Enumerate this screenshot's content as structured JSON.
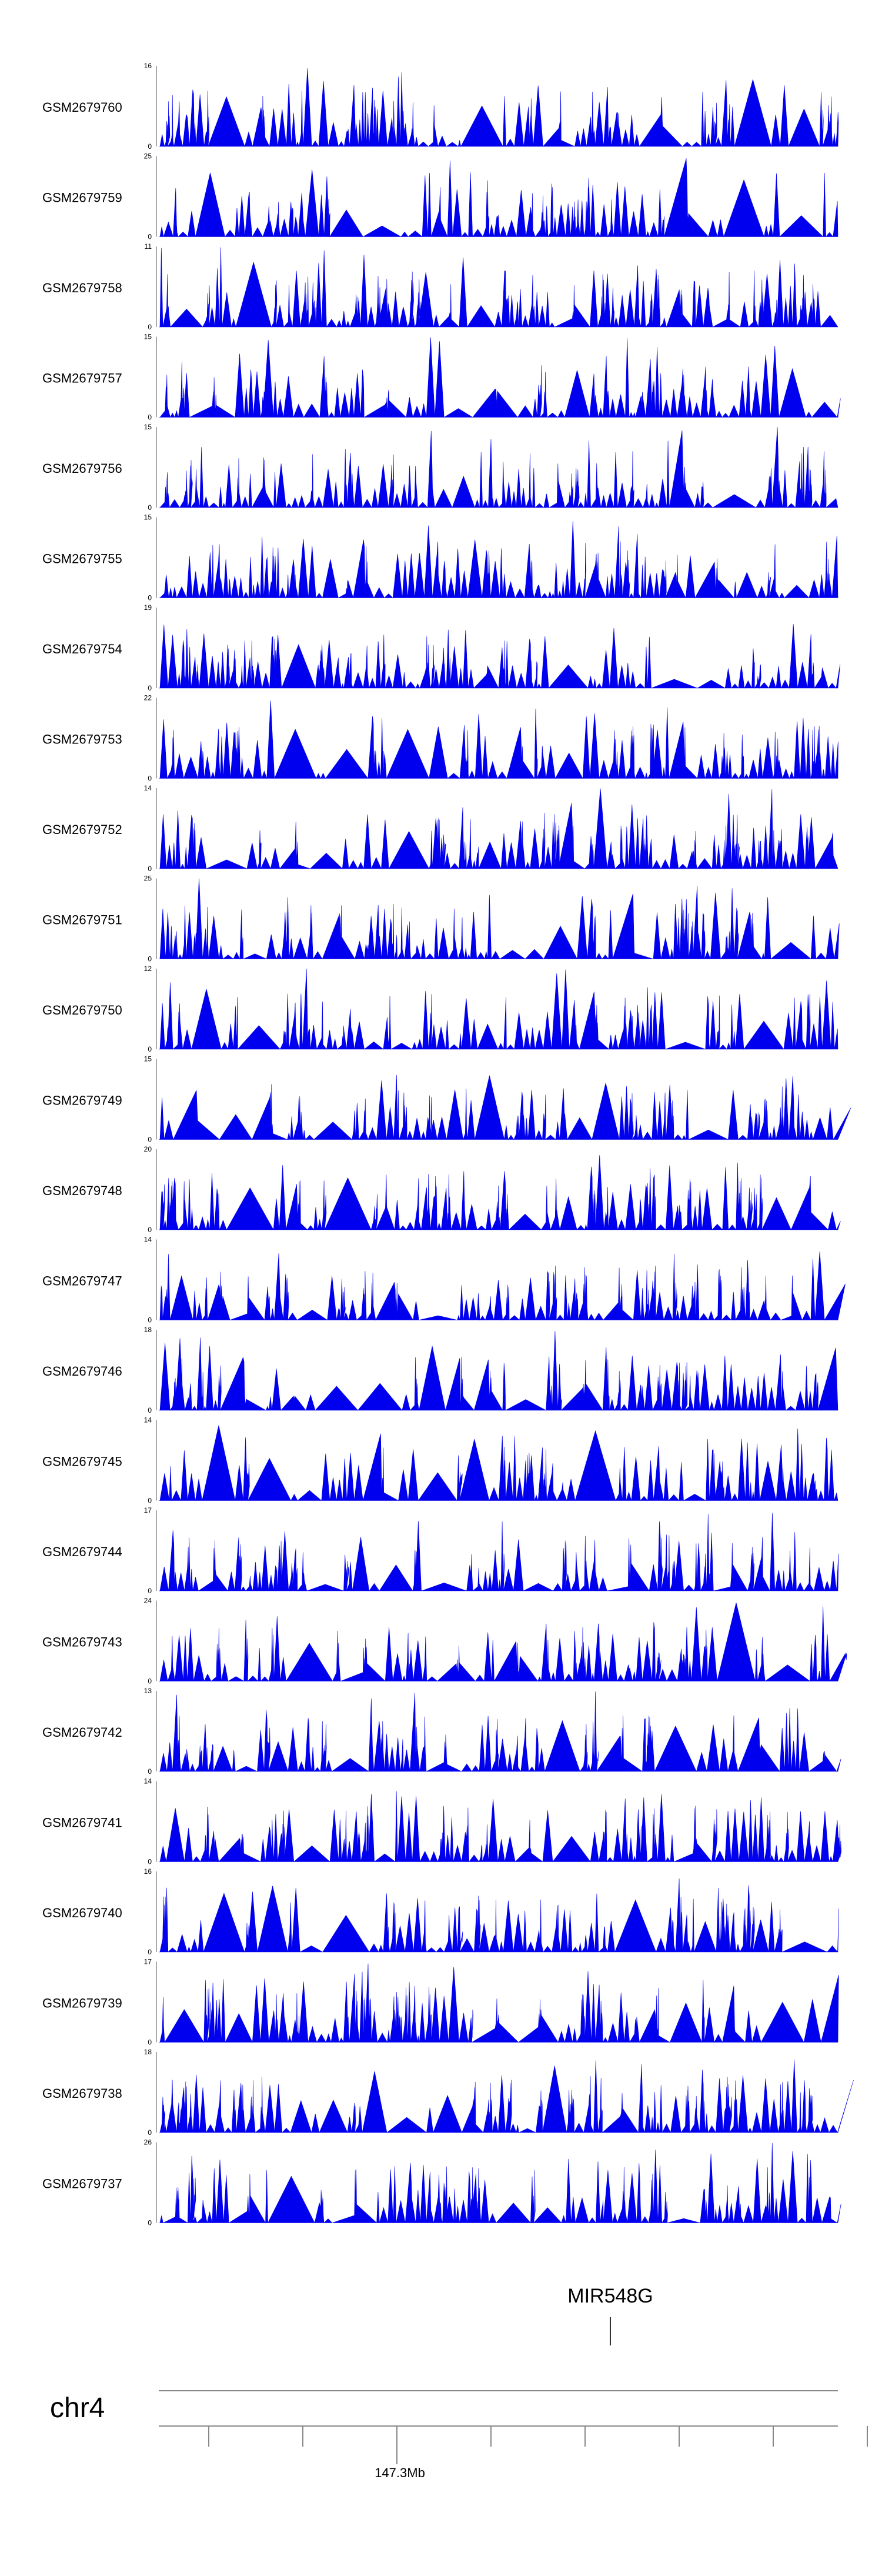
{
  "chart_data": {
    "type": "area",
    "title": "",
    "color": "#0000ee",
    "tracks": [
      {
        "name": "GSM2679760",
        "ymax": "16",
        "ymin": "0",
        "seed": 11,
        "peak": 16
      },
      {
        "name": "GSM2679759",
        "ymax": "25",
        "ymin": "0",
        "seed": 12,
        "peak": 25
      },
      {
        "name": "GSM2679758",
        "ymax": "11",
        "ymin": "0",
        "seed": 13,
        "peak": 11
      },
      {
        "name": "GSM2679757",
        "ymax": "15",
        "ymin": "0",
        "seed": 14,
        "peak": 15
      },
      {
        "name": "GSM2679756",
        "ymax": "15",
        "ymin": "0",
        "seed": 15,
        "peak": 15
      },
      {
        "name": "GSM2679755",
        "ymax": "15",
        "ymin": "0",
        "seed": 16,
        "peak": 15
      },
      {
        "name": "GSM2679754",
        "ymax": "19",
        "ymin": "0",
        "seed": 17,
        "peak": 19
      },
      {
        "name": "GSM2679753",
        "ymax": "22",
        "ymin": "0",
        "seed": 18,
        "peak": 22
      },
      {
        "name": "GSM2679752",
        "ymax": "14",
        "ymin": "0",
        "seed": 19,
        "peak": 14
      },
      {
        "name": "GSM2679751",
        "ymax": "25",
        "ymin": "0",
        "seed": 20,
        "peak": 25
      },
      {
        "name": "GSM2679750",
        "ymax": "12",
        "ymin": "0",
        "seed": 21,
        "peak": 12
      },
      {
        "name": "GSM2679749",
        "ymax": "15",
        "ymin": "0",
        "seed": 22,
        "peak": 15
      },
      {
        "name": "GSM2679748",
        "ymax": "20",
        "ymin": "0",
        "seed": 23,
        "peak": 20
      },
      {
        "name": "GSM2679747",
        "ymax": "14",
        "ymin": "0",
        "seed": 24,
        "peak": 14
      },
      {
        "name": "GSM2679746",
        "ymax": "18",
        "ymin": "0",
        "seed": 25,
        "peak": 18
      },
      {
        "name": "GSM2679745",
        "ymax": "14",
        "ymin": "0",
        "seed": 26,
        "peak": 14
      },
      {
        "name": "GSM2679744",
        "ymax": "17",
        "ymin": "0",
        "seed": 27,
        "peak": 17
      },
      {
        "name": "GSM2679743",
        "ymax": "24",
        "ymin": "0",
        "seed": 28,
        "peak": 24
      },
      {
        "name": "GSM2679742",
        "ymax": "13",
        "ymin": "0",
        "seed": 29,
        "peak": 13
      },
      {
        "name": "GSM2679741",
        "ymax": "14",
        "ymin": "0",
        "seed": 30,
        "peak": 14
      },
      {
        "name": "GSM2679740",
        "ymax": "16",
        "ymin": "0",
        "seed": 31,
        "peak": 16
      },
      {
        "name": "GSM2679739",
        "ymax": "17",
        "ymin": "0",
        "seed": 32,
        "peak": 17
      },
      {
        "name": "GSM2679738",
        "ymax": "18",
        "ymin": "0",
        "seed": 33,
        "peak": 18
      },
      {
        "name": "GSM2679737",
        "ymax": "26",
        "ymin": "0",
        "seed": 34,
        "peak": 26
      }
    ],
    "gene": {
      "name": "MIR548G"
    },
    "chromosome": "chr4",
    "axis": {
      "labeled_tick": "147.3Mb",
      "tick_count": 8
    }
  }
}
